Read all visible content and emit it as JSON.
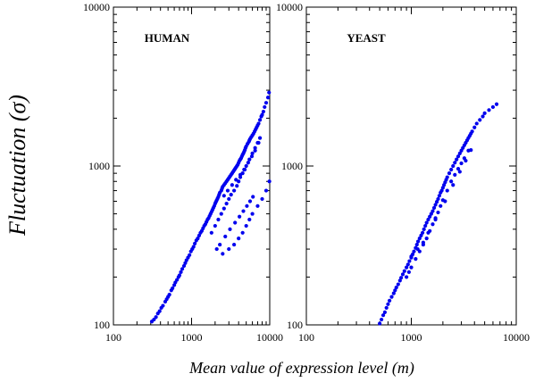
{
  "figure": {
    "ylabel": "Fluctuation (σ)",
    "xlabel": "Mean value of expression level (m)"
  },
  "chart_data": [
    {
      "type": "scatter",
      "title": "HUMAN",
      "xscale": "log",
      "yscale": "log",
      "xlim": [
        100,
        10000
      ],
      "ylim": [
        100,
        10000
      ],
      "xticks": [
        "100",
        "1000",
        "10000"
      ],
      "yticks": [
        "100",
        "1000",
        "10000"
      ],
      "marker_color": "#0000ee",
      "points": {
        "x": [
          310,
          330,
          350,
          370,
          390,
          410,
          430,
          460,
          480,
          500,
          520,
          550,
          570,
          600,
          620,
          650,
          680,
          700,
          730,
          760,
          800,
          830,
          860,
          900,
          940,
          980,
          1020,
          1060,
          1100,
          1150,
          1200,
          1250,
          1300,
          1350,
          1400,
          1450,
          1500,
          1550,
          1600,
          1650,
          1700,
          1750,
          1800,
          1850,
          1900,
          1950,
          2000,
          2050,
          2100,
          2150,
          2200,
          2250,
          2300,
          2400,
          2450,
          2500,
          2600,
          2700,
          2800,
          2900,
          3000,
          3100,
          3200,
          3300,
          3400,
          3500,
          3600,
          3700,
          3800,
          3900,
          4000,
          4100,
          4200,
          4300,
          4400,
          4500,
          4600,
          4700,
          4800,
          4900,
          5000,
          5200,
          5400,
          5500,
          5600,
          5800,
          6000,
          6200,
          6400,
          6600,
          6800,
          7000,
          7200,
          7500,
          7800,
          8000,
          8300,
          8600,
          9000,
          9500,
          9800,
          1800,
          2000,
          2200,
          2400,
          2600,
          2800,
          3000,
          3200,
          3500,
          3800,
          4000,
          4200,
          4500,
          4800,
          5000,
          5500,
          6000,
          6500,
          7000,
          7500,
          2100,
          2300,
          2700,
          3100,
          3600,
          4100,
          4600,
          5100,
          5600,
          6100,
          2500,
          3000,
          3500,
          4000,
          4500,
          5000,
          5500,
          6000,
          7000,
          8000,
          9000,
          9900,
          2600,
          2900,
          3300,
          3700,
          4200,
          4700,
          5300,
          5900,
          6500,
          7200
        ],
        "y": [
          105,
          108,
          112,
          118,
          122,
          128,
          132,
          140,
          145,
          150,
          155,
          165,
          170,
          178,
          185,
          192,
          200,
          205,
          215,
          225,
          235,
          245,
          255,
          265,
          275,
          290,
          300,
          310,
          325,
          340,
          350,
          365,
          380,
          390,
          405,
          420,
          430,
          445,
          460,
          470,
          485,
          500,
          515,
          530,
          545,
          560,
          580,
          595,
          610,
          625,
          640,
          660,
          680,
          700,
          720,
          740,
          760,
          780,
          800,
          820,
          840,
          860,
          880,
          900,
          920,
          940,
          960,
          980,
          1000,
          1020,
          1050,
          1080,
          1100,
          1120,
          1150,
          1180,
          1200,
          1230,
          1260,
          1300,
          1330,
          1380,
          1420,
          1450,
          1480,
          1520,
          1560,
          1600,
          1650,
          1700,
          1750,
          1800,
          1850,
          1950,
          2050,
          2100,
          2200,
          2350,
          2500,
          2700,
          2900,
          380,
          420,
          460,
          500,
          540,
          580,
          620,
          660,
          700,
          750,
          800,
          850,
          900,
          950,
          1000,
          1100,
          1200,
          1300,
          1400,
          1500,
          300,
          320,
          360,
          400,
          440,
          480,
          520,
          560,
          600,
          640,
          280,
          300,
          320,
          350,
          380,
          420,
          460,
          500,
          560,
          620,
          700,
          800,
          650,
          700,
          760,
          820,
          880,
          950,
          1050,
          1150,
          1250,
          1400
        ]
      }
    },
    {
      "type": "scatter",
      "title": "YEAST",
      "xscale": "log",
      "yscale": "log",
      "xlim": [
        100,
        10000
      ],
      "ylim": [
        100,
        10000
      ],
      "xticks": [
        "100",
        "1000",
        "10000"
      ],
      "yticks": [
        "100",
        "1000",
        "10000"
      ],
      "marker_color": "#0000ee",
      "points": {
        "x": [
          500,
          520,
          540,
          560,
          580,
          600,
          620,
          650,
          680,
          700,
          720,
          750,
          780,
          800,
          830,
          860,
          900,
          930,
          960,
          1000,
          1030,
          1060,
          1100,
          1130,
          1160,
          1200,
          1240,
          1280,
          1320,
          1360,
          1400,
          1450,
          1500,
          1550,
          1600,
          1650,
          1700,
          1750,
          1800,
          1850,
          1900,
          1950,
          2000,
          2050,
          2100,
          2150,
          2200,
          2300,
          2400,
          2500,
          2600,
          2700,
          2800,
          2900,
          3000,
          3100,
          3200,
          3300,
          3400,
          3500,
          3600,
          3700,
          3800,
          4000,
          4200,
          4500,
          4800,
          5000,
          5500,
          6000,
          6500,
          900,
          950,
          1000,
          1100,
          1200,
          1300,
          1400,
          1500,
          1600,
          1700,
          1800,
          1900,
          2000,
          2200,
          2400,
          2600,
          2800,
          3000,
          3200,
          3500,
          1000,
          1150,
          1300,
          1450,
          1700,
          2100,
          2500,
          2900,
          3300,
          3700
        ],
        "y": [
          102,
          108,
          115,
          120,
          128,
          135,
          142,
          150,
          158,
          165,
          172,
          180,
          190,
          198,
          208,
          218,
          230,
          240,
          252,
          265,
          278,
          290,
          305,
          320,
          335,
          350,
          365,
          380,
          400,
          420,
          440,
          460,
          480,
          500,
          520,
          545,
          570,
          595,
          620,
          650,
          680,
          700,
          730,
          760,
          790,
          820,
          850,
          900,
          950,
          1000,
          1050,
          1100,
          1150,
          1200,
          1250,
          1300,
          1350,
          1400,
          1450,
          1500,
          1550,
          1600,
          1650,
          1750,
          1850,
          1950,
          2050,
          2150,
          2250,
          2350,
          2450,
          200,
          215,
          230,
          260,
          290,
          320,
          350,
          390,
          430,
          470,
          510,
          560,
          610,
          700,
          800,
          880,
          960,
          1040,
          1120,
          1250,
          270,
          300,
          330,
          380,
          460,
          600,
          760,
          920,
          1080,
          1260
        ]
      }
    }
  ]
}
